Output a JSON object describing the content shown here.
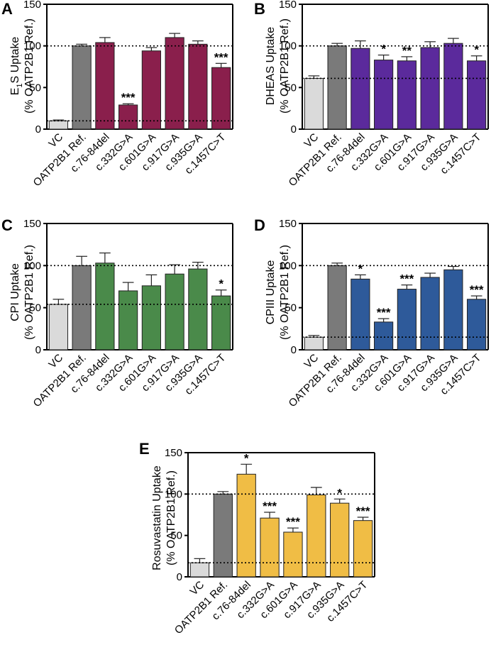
{
  "chart_data": [
    {
      "panel": "A",
      "type": "bar",
      "ylabel_line1": "E1S Uptake",
      "ylabel_line1_main": "E",
      "ylabel_line1_sub": "1",
      "ylabel_line1_rest": "S Uptake",
      "ylabel_line2": "(% OATP2B1 Ref.)",
      "ylim": [
        0,
        150
      ],
      "yticks": [
        0,
        50,
        100,
        150
      ],
      "categories": [
        "VC",
        "OATP2B1 Ref.",
        "c.76-84del",
        "c.332G>A",
        "c.601G>A",
        "c.917G>A",
        "c.935G>A",
        "c.1457C>T"
      ],
      "values": [
        10,
        100,
        104,
        29,
        94,
        110,
        102,
        74
      ],
      "errors": [
        1,
        2,
        6,
        1.5,
        4,
        5,
        4,
        5
      ],
      "significance": [
        "",
        "",
        "",
        "***",
        "",
        "",
        "",
        "***"
      ],
      "reference_lines": [
        100,
        10
      ],
      "colors": [
        "#dadada",
        "#7a7a7a",
        "#8a1f4c",
        "#8a1f4c",
        "#8a1f4c",
        "#8a1f4c",
        "#8a1f4c",
        "#8a1f4c"
      ]
    },
    {
      "panel": "B",
      "type": "bar",
      "ylabel_line1": "DHEAS Uptake",
      "ylabel_line2": "(% OATP2B1 Ref.)",
      "ylim": [
        0,
        150
      ],
      "yticks": [
        0,
        50,
        100,
        150
      ],
      "categories": [
        "VC",
        "OATP2B1 Ref.",
        "c.76-84del",
        "c.332G>A",
        "c.601G>A",
        "c.917G>A",
        "c.935G>A",
        "c.1457C>T"
      ],
      "values": [
        61,
        100,
        97,
        83,
        82,
        98,
        103,
        82
      ],
      "errors": [
        3,
        3,
        9,
        6,
        5,
        7,
        6,
        6
      ],
      "significance": [
        "",
        "",
        "",
        "*",
        "**",
        "",
        "",
        "*"
      ],
      "reference_lines": [
        100,
        61
      ],
      "colors": [
        "#dadada",
        "#7a7a7a",
        "#5b2a9c",
        "#5b2a9c",
        "#5b2a9c",
        "#5b2a9c",
        "#5b2a9c",
        "#5b2a9c"
      ]
    },
    {
      "panel": "C",
      "type": "bar",
      "ylabel_line1": "CPI Uptake",
      "ylabel_line2": "(% OATP2B1 Ref.)",
      "ylim": [
        0,
        150
      ],
      "yticks": [
        0,
        50,
        100,
        150
      ],
      "categories": [
        "VC",
        "OATP2B1 Ref.",
        "c.76-84del",
        "c.332G>A",
        "c.601G>A",
        "c.917G>A",
        "c.935G>A",
        "c.1457C>T"
      ],
      "values": [
        54,
        100,
        103,
        70,
        76,
        90,
        96,
        64
      ],
      "errors": [
        6,
        11,
        12,
        10,
        13,
        11,
        8,
        7
      ],
      "significance": [
        "",
        "",
        "",
        "",
        "",
        "",
        "",
        "*"
      ],
      "reference_lines": [
        100,
        54
      ],
      "colors": [
        "#dadada",
        "#7a7a7a",
        "#4a8a4a",
        "#4a8a4a",
        "#4a8a4a",
        "#4a8a4a",
        "#4a8a4a",
        "#4a8a4a"
      ]
    },
    {
      "panel": "D",
      "type": "bar",
      "ylabel_line1": "CPIII Uptake",
      "ylabel_line2": "(% OATP2B1 Ref.)",
      "ylim": [
        0,
        150
      ],
      "yticks": [
        0,
        50,
        100,
        150
      ],
      "categories": [
        "VC",
        "OATP2B1 Ref.",
        "c.76-84del",
        "c.332G>A",
        "c.601G>A",
        "c.917G>A",
        "c.935G>A",
        "c.1457C>T"
      ],
      "values": [
        15,
        100,
        84,
        33,
        72,
        86,
        95,
        60
      ],
      "errors": [
        2,
        3,
        5,
        4,
        5,
        5,
        4,
        4
      ],
      "significance": [
        "",
        "",
        "*",
        "***",
        "***",
        "",
        "",
        "***"
      ],
      "reference_lines": [
        100,
        15
      ],
      "colors": [
        "#dadada",
        "#7a7a7a",
        "#2e5a9a",
        "#2e5a9a",
        "#2e5a9a",
        "#2e5a9a",
        "#2e5a9a",
        "#2e5a9a"
      ]
    },
    {
      "panel": "E",
      "type": "bar",
      "ylabel_line1": "Rosuvastatin Uptake",
      "ylabel_line2": "(% OATP2B1 Ref.)",
      "ylim": [
        0,
        150
      ],
      "yticks": [
        0,
        50,
        100,
        150
      ],
      "categories": [
        "VC",
        "OATP2B1 Ref.",
        "c.76-84del",
        "c.332G>A",
        "c.601G>A",
        "c.917G>A",
        "c.935G>A",
        "c.1457C>T"
      ],
      "values": [
        17,
        100,
        124,
        71,
        54,
        99,
        89,
        68
      ],
      "errors": [
        5,
        3,
        12,
        7,
        5,
        9,
        5,
        4
      ],
      "significance": [
        "",
        "",
        "*",
        "***",
        "***",
        "",
        "*",
        "***"
      ],
      "reference_lines": [
        100,
        17
      ],
      "colors": [
        "#dadada",
        "#7a7a7a",
        "#f0bd45",
        "#f0bd45",
        "#f0bd45",
        "#f0bd45",
        "#f0bd45",
        "#f0bd45"
      ]
    }
  ]
}
